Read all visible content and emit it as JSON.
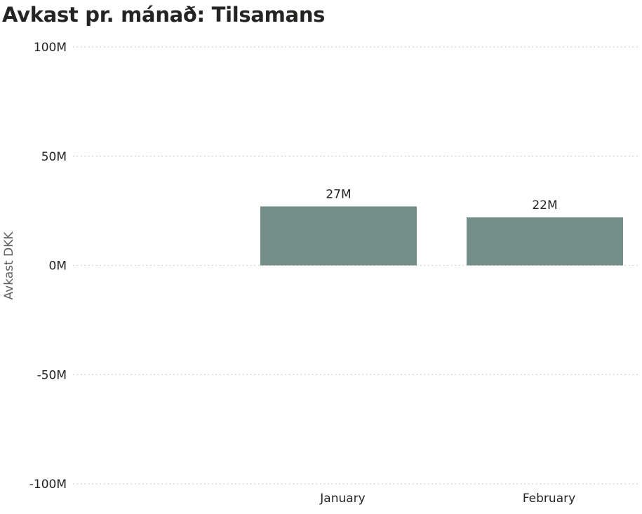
{
  "chart_data": {
    "type": "bar",
    "title": "Avkast pr. mánað: Tilsamans",
    "xlabel": "",
    "ylabel": "Avkast DKK",
    "categories": [
      "January",
      "February"
    ],
    "values": [
      27000000,
      22000000
    ],
    "data_labels": [
      "27M",
      "22M"
    ],
    "ylim": [
      -100000000,
      100000000
    ],
    "yticks": [
      100000000,
      50000000,
      0,
      -50000000,
      -100000000
    ],
    "ytick_labels": [
      "100M",
      "50M",
      "0M",
      "-50M",
      "-100M"
    ],
    "grid": true,
    "legend": "none",
    "bar_color": "#748f87"
  }
}
